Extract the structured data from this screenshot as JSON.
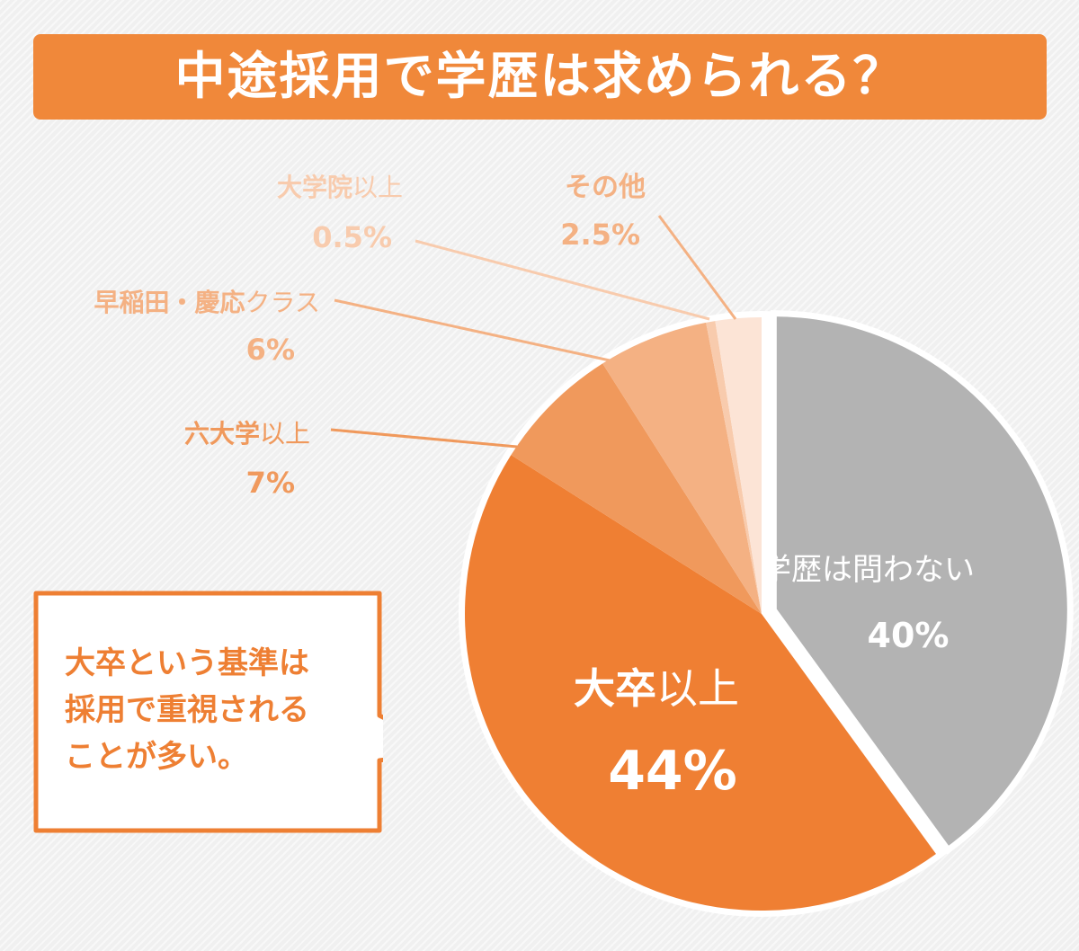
{
  "title": "中途採用で学歴は求められる？",
  "chart_data": {
    "type": "pie",
    "start_angle": "12 o'clock",
    "direction": "clockwise",
    "slices": [
      {
        "label_bold": "",
        "label_rest": "学歴は問わない",
        "value": 40,
        "value_label": "40%",
        "color": "#b3b3b3"
      },
      {
        "label_bold": "大卒",
        "label_rest": "以上",
        "value": 44,
        "value_label": "44%",
        "color": "#ef7f33"
      },
      {
        "label_bold": "六大学",
        "label_rest": "以上",
        "value": 7,
        "value_label": "7%",
        "color": "#f0995c"
      },
      {
        "label_bold": "早稲田・慶応",
        "label_rest": "クラス",
        "value": 6,
        "value_label": "6%",
        "color": "#f4b183"
      },
      {
        "label_bold": "大学院",
        "label_rest": "以上",
        "value": 0.5,
        "value_label": "0.5%",
        "color": "#f8cbad"
      },
      {
        "label_bold": "その他",
        "label_rest": "",
        "value": 2.5,
        "value_label": "2.5%",
        "color": "#fce4d6"
      }
    ]
  },
  "callout": {
    "lines": [
      "大卒という基準は",
      "採用で重視される",
      "ことが多い。"
    ]
  },
  "colors": {
    "accent": "#f0883a",
    "callout_border": "#ee7f33"
  }
}
